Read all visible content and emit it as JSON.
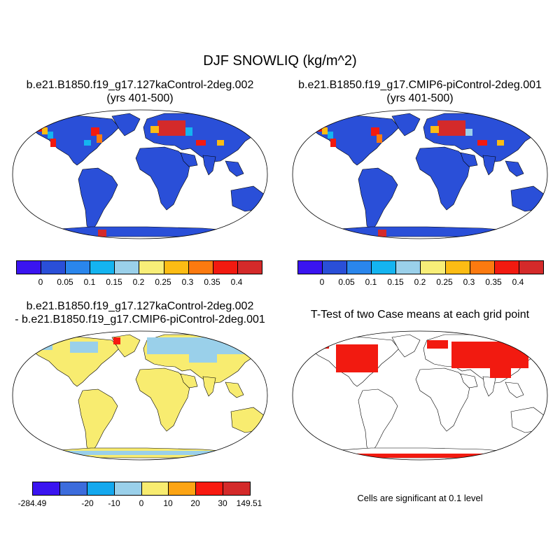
{
  "main_title": "DJF SNOWLIQ (kg/m^2)",
  "panels": [
    {
      "title_line1": "b.e21.B1850.f19_g17.127kaControl-2deg.002",
      "title_line2": "(yrs 401-500)"
    },
    {
      "title_line1": "b.e21.B1850.f19_g17.CMIP6-piControl-2deg.001",
      "title_line2": "(yrs 401-500)"
    },
    {
      "title_line1": "b.e21.B1850.f19_g17.127kaControl-2deg.002",
      "title_line2": "- b.e21.B1850.f19_g17.CMIP6-piControl-2deg.001"
    },
    {
      "title_line1": "T-Test of two Case means at each grid point",
      "title_line2": ""
    }
  ],
  "colorbar_abs": {
    "colors": [
      "#3a14f0",
      "#2a4fd8",
      "#2a86ec",
      "#14b4f0",
      "#9ad0ea",
      "#f8ee78",
      "#fcbc14",
      "#fc7a10",
      "#f21a10",
      "#d42a2a"
    ],
    "labels": [
      "0",
      "0.05",
      "0.1",
      "0.15",
      "0.2",
      "0.25",
      "0.3",
      "0.35",
      "0.4"
    ]
  },
  "colorbar_diff": {
    "colors": [
      "#3a14f0",
      "#3c6cdc",
      "#14a8ee",
      "#9ad0ea",
      "#f8ec70",
      "#fca414",
      "#f81a10",
      "#d42a2a"
    ],
    "labels": [
      "-284.49",
      "-20",
      "-10",
      "0",
      "10",
      "20",
      "30",
      "149.51"
    ]
  },
  "significance_note": "Cells are significant at 0.1 level"
}
